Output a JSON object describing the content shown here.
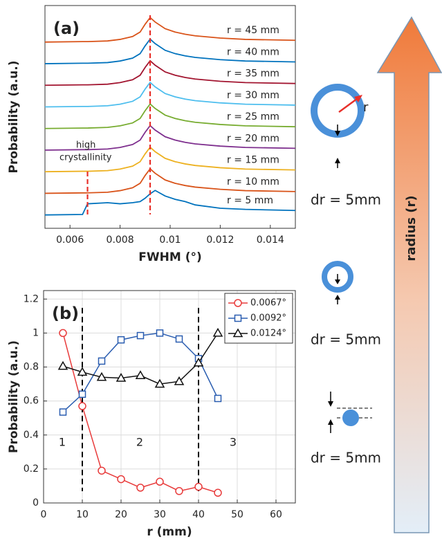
{
  "chart_data": [
    {
      "type": "line",
      "panel_label": "(a)",
      "xlabel": "FWHM (°)",
      "ylabel": "Probability (a.u.)",
      "annotation": [
        "high",
        "crystallinity"
      ],
      "xlim": [
        0.005,
        0.015
      ],
      "xticks": [
        0.006,
        0.008,
        0.01,
        0.012,
        0.014
      ],
      "ylim": [
        0,
        10
      ],
      "vlines": [
        0.0067,
        0.0092
      ],
      "vline_color": "#e8302a",
      "x": [
        0.005,
        0.0065,
        0.0067,
        0.0075,
        0.008,
        0.0085,
        0.0088,
        0.009,
        0.0092,
        0.0094,
        0.0098,
        0.0102,
        0.0106,
        0.011,
        0.012,
        0.013,
        0.015
      ],
      "series": [
        {
          "name": "r = 5 mm",
          "color": "#0072BD",
          "values": [
            0.6,
            0.62,
            1.1,
            1.15,
            1.1,
            1.15,
            1.2,
            1.35,
            1.55,
            1.7,
            1.45,
            1.3,
            1.2,
            1.05,
            0.9,
            0.85,
            0.8
          ]
        },
        {
          "name": "r = 10 mm",
          "color": "#D95319",
          "values": [
            1.57,
            1.59,
            1.59,
            1.62,
            1.69,
            1.82,
            2.02,
            2.37,
            2.67,
            2.47,
            2.17,
            2.02,
            1.92,
            1.85,
            1.75,
            1.69,
            1.65
          ]
        },
        {
          "name": "r = 15 mm",
          "color": "#EDB120",
          "values": [
            2.54,
            2.56,
            2.56,
            2.59,
            2.66,
            2.79,
            2.99,
            3.34,
            3.64,
            3.44,
            3.14,
            2.99,
            2.89,
            2.82,
            2.72,
            2.66,
            2.62
          ]
        },
        {
          "name": "r = 20 mm",
          "color": "#7E2F8E",
          "values": [
            3.51,
            3.53,
            3.53,
            3.56,
            3.63,
            3.76,
            3.96,
            4.31,
            4.61,
            4.41,
            4.11,
            3.96,
            3.86,
            3.79,
            3.69,
            3.63,
            3.59
          ]
        },
        {
          "name": "r = 25 mm",
          "color": "#77AC30",
          "values": [
            4.48,
            4.5,
            4.5,
            4.53,
            4.6,
            4.73,
            4.93,
            5.28,
            5.58,
            5.38,
            5.08,
            4.93,
            4.83,
            4.76,
            4.66,
            4.6,
            4.56
          ]
        },
        {
          "name": "r = 30 mm",
          "color": "#4DBEEE",
          "values": [
            5.45,
            5.47,
            5.47,
            5.5,
            5.57,
            5.7,
            5.9,
            6.25,
            6.55,
            6.35,
            6.05,
            5.9,
            5.8,
            5.73,
            5.63,
            5.57,
            5.53
          ]
        },
        {
          "name": "r = 35 mm",
          "color": "#A2142F",
          "values": [
            6.42,
            6.44,
            6.44,
            6.47,
            6.54,
            6.67,
            6.87,
            7.22,
            7.52,
            7.32,
            7.02,
            6.87,
            6.77,
            6.7,
            6.6,
            6.54,
            6.5
          ]
        },
        {
          "name": "r = 40 mm",
          "color": "#0072BD",
          "values": [
            7.39,
            7.41,
            7.41,
            7.44,
            7.51,
            7.64,
            7.84,
            8.19,
            8.49,
            8.29,
            7.99,
            7.84,
            7.74,
            7.67,
            7.57,
            7.51,
            7.47
          ]
        },
        {
          "name": "r = 45 mm",
          "color": "#D95319",
          "values": [
            8.36,
            8.38,
            8.38,
            8.41,
            8.48,
            8.61,
            8.81,
            9.16,
            9.46,
            9.26,
            8.96,
            8.81,
            8.71,
            8.64,
            8.54,
            8.48,
            8.44
          ]
        }
      ]
    },
    {
      "type": "line",
      "panel_label": "(b)",
      "xlabel": "r (mm)",
      "ylabel": "Probability (a.u.)",
      "xlim": [
        0,
        65
      ],
      "xticks": [
        0,
        10,
        20,
        30,
        40,
        50,
        60
      ],
      "ylim": [
        0,
        1.25
      ],
      "yticks": [
        0,
        0.2,
        0.4,
        0.6,
        0.8,
        1,
        1.2
      ],
      "grid": true,
      "legend": "upper right",
      "vlines": [
        10,
        40
      ],
      "region_labels": [
        "1",
        "2",
        "3"
      ],
      "x": [
        5,
        10,
        15,
        20,
        25,
        30,
        35,
        40,
        45
      ],
      "series": [
        {
          "name": "0.0067°",
          "color": "#e83a3a",
          "marker": "circle",
          "values": [
            1.0,
            0.57,
            0.19,
            0.14,
            0.09,
            0.125,
            0.07,
            0.095,
            0.06
          ]
        },
        {
          "name": "0.0092°",
          "color": "#2a5db0",
          "marker": "square",
          "values": [
            0.535,
            0.64,
            0.835,
            0.96,
            0.985,
            1.0,
            0.965,
            0.85,
            0.615
          ]
        },
        {
          "name": "0.0124°",
          "color": "#111111",
          "marker": "triangle",
          "values": [
            0.805,
            0.77,
            0.74,
            0.735,
            0.75,
            0.7,
            0.715,
            0.825,
            1.0
          ]
        }
      ]
    }
  ],
  "diagram": {
    "ring_label": "r",
    "dr_labels": [
      "dr = 5mm",
      "dr = 5mm",
      "dr = 5mm"
    ],
    "arrow_label": "radius (r)"
  }
}
